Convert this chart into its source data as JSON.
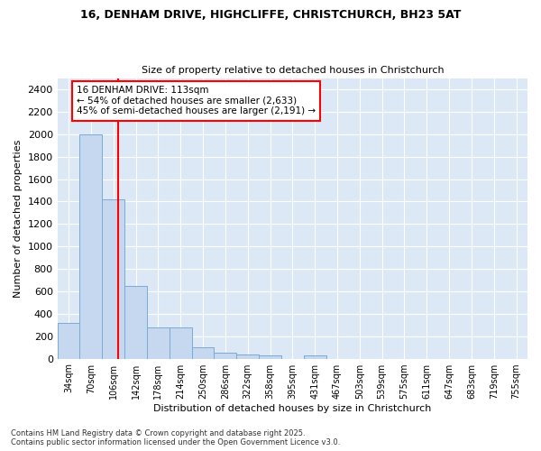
{
  "title1": "16, DENHAM DRIVE, HIGHCLIFFE, CHRISTCHURCH, BH23 5AT",
  "title2": "Size of property relative to detached houses in Christchurch",
  "xlabel": "Distribution of detached houses by size in Christchurch",
  "ylabel": "Number of detached properties",
  "categories": [
    "34sqm",
    "70sqm",
    "106sqm",
    "142sqm",
    "178sqm",
    "214sqm",
    "250sqm",
    "286sqm",
    "322sqm",
    "358sqm",
    "395sqm",
    "431sqm",
    "467sqm",
    "503sqm",
    "539sqm",
    "575sqm",
    "611sqm",
    "647sqm",
    "683sqm",
    "719sqm",
    "755sqm"
  ],
  "values": [
    320,
    2000,
    1420,
    650,
    280,
    280,
    100,
    50,
    40,
    30,
    0,
    30,
    0,
    0,
    0,
    0,
    0,
    0,
    0,
    0,
    0
  ],
  "bar_color": "#c5d8f0",
  "bar_edge_color": "#7aaad4",
  "annotation_line1": "16 DENHAM DRIVE: 113sqm",
  "annotation_line2": "← 54% of detached houses are smaller (2,633)",
  "annotation_line3": "45% of semi-detached houses are larger (2,191) →",
  "ylim": [
    0,
    2500
  ],
  "yticks": [
    0,
    200,
    400,
    600,
    800,
    1000,
    1200,
    1400,
    1600,
    1800,
    2000,
    2200,
    2400
  ],
  "background_color": "#ffffff",
  "plot_background": "#dce8f5",
  "grid_color": "#ffffff",
  "footer1": "Contains HM Land Registry data © Crown copyright and database right 2025.",
  "footer2": "Contains public sector information licensed under the Open Government Licence v3.0."
}
